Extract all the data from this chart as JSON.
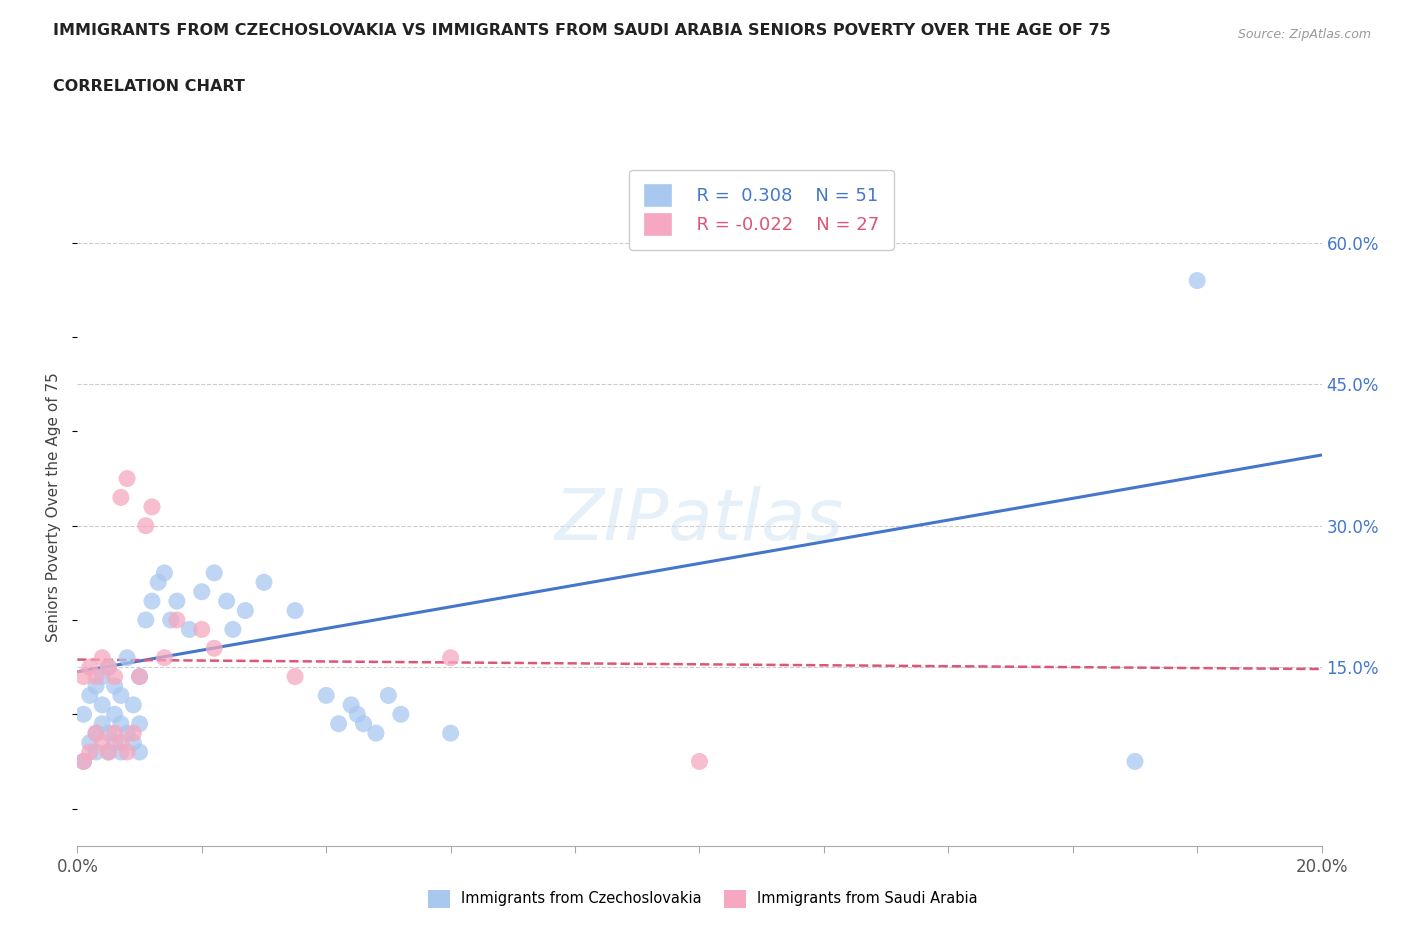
{
  "title_line1": "IMMIGRANTS FROM CZECHOSLOVAKIA VS IMMIGRANTS FROM SAUDI ARABIA SENIORS POVERTY OVER THE AGE OF 75",
  "title_line2": "CORRELATION CHART",
  "source": "Source: ZipAtlas.com",
  "ylabel": "Seniors Poverty Over the Age of 75",
  "xlim": [
    0.0,
    0.2
  ],
  "ylim": [
    -0.04,
    0.68
  ],
  "y_ticks": [
    0.15,
    0.3,
    0.45,
    0.6
  ],
  "y_tick_labels": [
    "15.0%",
    "30.0%",
    "45.0%",
    "60.0%"
  ],
  "czech_color": "#a8c8f0",
  "saudi_color": "#f5a8c0",
  "czech_line_color": "#4477cc",
  "saudi_line_color": "#dd5577",
  "watermark": "ZIPatlas",
  "legend_R_czech": "R =  0.308",
  "legend_N_czech": "N = 51",
  "legend_R_saudi": "R = -0.022",
  "legend_N_saudi": "N = 27",
  "czech_x": [
    0.001,
    0.001,
    0.002,
    0.002,
    0.003,
    0.003,
    0.003,
    0.004,
    0.004,
    0.004,
    0.005,
    0.005,
    0.005,
    0.006,
    0.006,
    0.006,
    0.007,
    0.007,
    0.007,
    0.008,
    0.008,
    0.009,
    0.009,
    0.01,
    0.01,
    0.01,
    0.011,
    0.012,
    0.013,
    0.014,
    0.015,
    0.016,
    0.018,
    0.02,
    0.022,
    0.024,
    0.025,
    0.027,
    0.03,
    0.035,
    0.04,
    0.042,
    0.044,
    0.045,
    0.046,
    0.048,
    0.05,
    0.052,
    0.06,
    0.17,
    0.18
  ],
  "czech_y": [
    0.05,
    0.1,
    0.07,
    0.12,
    0.06,
    0.08,
    0.13,
    0.09,
    0.11,
    0.14,
    0.06,
    0.08,
    0.15,
    0.07,
    0.1,
    0.13,
    0.06,
    0.09,
    0.12,
    0.08,
    0.16,
    0.07,
    0.11,
    0.06,
    0.09,
    0.14,
    0.2,
    0.22,
    0.24,
    0.25,
    0.2,
    0.22,
    0.19,
    0.23,
    0.25,
    0.22,
    0.19,
    0.21,
    0.24,
    0.21,
    0.12,
    0.09,
    0.11,
    0.1,
    0.09,
    0.08,
    0.12,
    0.1,
    0.08,
    0.05,
    0.56
  ],
  "saudi_x": [
    0.001,
    0.001,
    0.002,
    0.002,
    0.003,
    0.003,
    0.004,
    0.004,
    0.005,
    0.005,
    0.006,
    0.006,
    0.007,
    0.007,
    0.008,
    0.008,
    0.009,
    0.01,
    0.011,
    0.012,
    0.014,
    0.016,
    0.02,
    0.022,
    0.035,
    0.06,
    0.1
  ],
  "saudi_y": [
    0.05,
    0.14,
    0.06,
    0.15,
    0.08,
    0.14,
    0.07,
    0.16,
    0.06,
    0.15,
    0.08,
    0.14,
    0.07,
    0.33,
    0.06,
    0.35,
    0.08,
    0.14,
    0.3,
    0.32,
    0.16,
    0.2,
    0.19,
    0.17,
    0.14,
    0.16,
    0.05
  ],
  "czech_line_x": [
    0.0,
    0.2
  ],
  "czech_line_y": [
    0.145,
    0.375
  ],
  "saudi_line_x": [
    0.0,
    0.2
  ],
  "saudi_line_y": [
    0.158,
    0.148
  ]
}
